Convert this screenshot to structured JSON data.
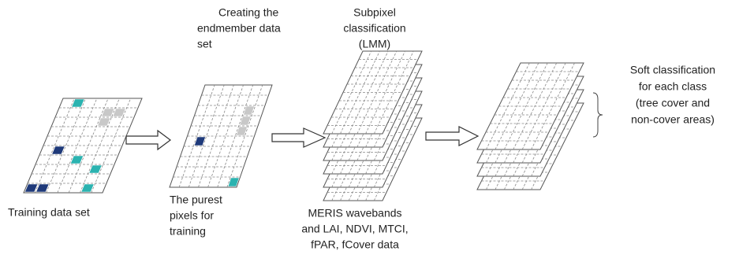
{
  "labels": {
    "training_data": [
      "Training data set"
    ],
    "endmember": [
      "Creating the",
      "endmember data",
      "set"
    ],
    "purest_pixels": [
      "The purest",
      "pixels for",
      "training"
    ],
    "subpixel": [
      "Subpixel",
      "classification",
      "(LMM)"
    ],
    "meris": [
      "MERIS wavebands",
      "and LAI, NDVI, MTCI,",
      "fPAR, fCover data"
    ],
    "soft": [
      "Soft classification",
      "for each class",
      "(tree cover and",
      "non-cover areas)"
    ]
  }
}
